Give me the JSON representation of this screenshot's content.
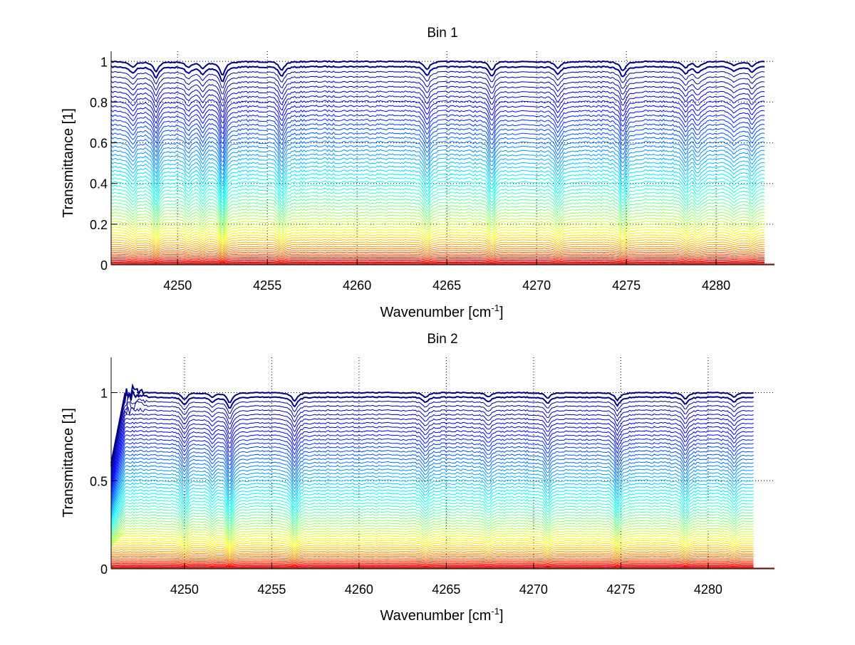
{
  "chart_data": [
    {
      "type": "line",
      "title": "Bin 1",
      "xlabel": {
        "main": "Wavenumber [cm",
        "sup": "-1",
        "end": "]"
      },
      "ylabel": "Transmittance [1]",
      "xlim": [
        4246.3,
        4283.25
      ],
      "ylim": [
        0,
        1.05
      ],
      "xticks": [
        4250,
        4255,
        4260,
        4265,
        4270,
        4275,
        4280
      ],
      "yticks": [
        0,
        0.2,
        0.4,
        0.6,
        0.8,
        1
      ],
      "ytick_labels": [
        "0",
        "0.2",
        "0.4",
        "0.6",
        "0.8",
        "1"
      ],
      "grid": true,
      "data_x_range": [
        4246.3,
        4282.7
      ],
      "n_series": 64,
      "series_baselines": "transmittance levels spread from 0 to 1 (denser near 0 and 1)",
      "colormap": "jet (dark blue at T=1, green mid, yellow/red at T=0)",
      "absorption_lines": [
        {
          "center": 4247.5,
          "depth": 0.06
        },
        {
          "center": 4248.8,
          "depth": 0.1
        },
        {
          "center": 4250.6,
          "depth": 0.06
        },
        {
          "center": 4251.4,
          "depth": 0.07
        },
        {
          "center": 4252.5,
          "depth": 0.14
        },
        {
          "center": 4255.8,
          "depth": 0.09
        },
        {
          "center": 4263.9,
          "depth": 0.08
        },
        {
          "center": 4267.5,
          "depth": 0.09
        },
        {
          "center": 4271.2,
          "depth": 0.07
        },
        {
          "center": 4274.8,
          "depth": 0.1
        },
        {
          "center": 4278.3,
          "depth": 0.06
        },
        {
          "center": 4279.0,
          "depth": 0.06
        },
        {
          "center": 4281.0,
          "depth": 0.04
        },
        {
          "center": 4282.0,
          "depth": 0.05
        }
      ]
    },
    {
      "type": "line",
      "title": "Bin 2",
      "xlabel": {
        "main": "Wavenumber [cm",
        "sup": "-1",
        "end": "]"
      },
      "ylabel": "Transmittance [1]",
      "xlim": [
        4245.8,
        4283.8
      ],
      "ylim": [
        0,
        1.2
      ],
      "xticks": [
        4250,
        4255,
        4260,
        4265,
        4270,
        4275,
        4280
      ],
      "yticks": [
        0,
        0.5,
        1
      ],
      "ytick_labels": [
        "0",
        "0.5",
        "1"
      ],
      "grid": true,
      "data_x_range": [
        4245.8,
        4282.6
      ],
      "n_series": 64,
      "series_baselines": "transmittance levels spread from 0 to 1 (denser near 0 and 1)",
      "colormap": "jet (dark blue at T=1, green mid, yellow/red at T=0)",
      "absorption_lines": [
        {
          "center": 4250.0,
          "depth": 0.08
        },
        {
          "center": 4251.6,
          "depth": 0.05
        },
        {
          "center": 4252.6,
          "depth": 0.12
        },
        {
          "center": 4256.3,
          "depth": 0.1
        },
        {
          "center": 4263.8,
          "depth": 0.06
        },
        {
          "center": 4267.4,
          "depth": 0.05
        },
        {
          "center": 4270.8,
          "depth": 0.07
        },
        {
          "center": 4274.8,
          "depth": 0.09
        },
        {
          "center": 4278.7,
          "depth": 0.08
        },
        {
          "center": 4281.5,
          "depth": 0.05
        }
      ]
    }
  ]
}
